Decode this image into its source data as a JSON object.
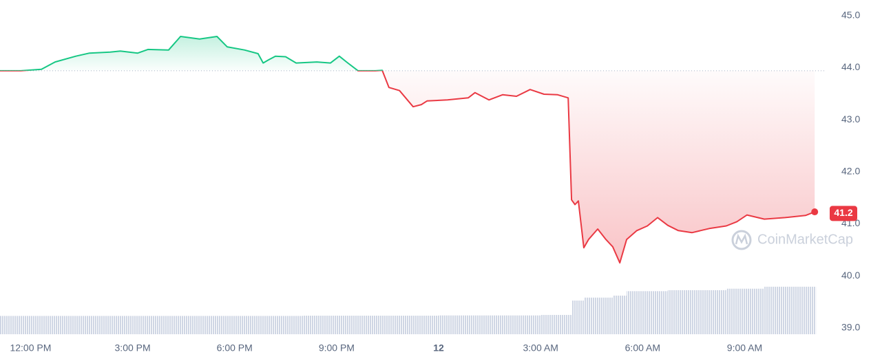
{
  "chart_data": {
    "type": "line",
    "series": [
      {
        "name": "Price",
        "color_up": "#16c784",
        "color_down": "#ea3943",
        "x": [
          -0.9,
          -0.29,
          0.32,
          0.72,
          1.33,
          1.73,
          2.34,
          2.64,
          3.15,
          3.45,
          4.06,
          4.41,
          4.97,
          5.48,
          5.78,
          6.29,
          6.69,
          6.84,
          7.0,
          7.2,
          7.5,
          7.81,
          8.42,
          8.82,
          9.08,
          9.33,
          9.63,
          10.14,
          10.34,
          10.54,
          10.85,
          11.25,
          11.49,
          11.66,
          12.26,
          12.87,
          13.07,
          13.48,
          13.88,
          14.29,
          14.69,
          15.1,
          15.5,
          15.81,
          15.91,
          16.01,
          16.11,
          16.27,
          16.41,
          16.68,
          16.92,
          17.12,
          17.33,
          17.53,
          17.83,
          18.14,
          18.44,
          18.74,
          19.05,
          19.45,
          19.96,
          20.46,
          20.77,
          21.07,
          21.58,
          22.19,
          22.79,
          23.06
        ],
        "values": [
          43.94,
          43.94,
          43.97,
          44.11,
          44.22,
          44.28,
          44.3,
          44.32,
          44.28,
          44.35,
          44.34,
          44.6,
          44.55,
          44.6,
          44.4,
          44.34,
          44.27,
          44.09,
          44.15,
          44.22,
          44.21,
          44.09,
          44.11,
          44.09,
          44.22,
          44.09,
          43.94,
          43.94,
          43.95,
          43.62,
          43.56,
          43.25,
          43.29,
          43.36,
          43.38,
          43.42,
          43.52,
          43.38,
          43.48,
          43.45,
          43.58,
          43.49,
          43.48,
          43.42,
          41.46,
          41.37,
          41.44,
          40.54,
          40.7,
          40.9,
          40.7,
          40.56,
          40.25,
          40.7,
          40.87,
          40.96,
          41.12,
          40.97,
          40.87,
          40.83,
          40.91,
          40.96,
          41.04,
          41.17,
          41.09,
          41.12,
          41.16,
          41.23
        ]
      }
    ],
    "baseline": 43.94,
    "current_price": 41.2,
    "volume": {
      "color": "#cfd6e4",
      "x": [
        -0.9,
        3.0,
        8.0,
        12.0,
        15.0,
        15.91,
        16.27,
        17.12,
        17.53,
        18.74,
        20.46,
        21.58
      ],
      "values": [
        0.37,
        0.37,
        0.375,
        0.38,
        0.39,
        0.68,
        0.74,
        0.78,
        0.87,
        0.89,
        0.92,
        0.96
      ]
    },
    "xlim": [
      -0.9,
      23.4
    ],
    "xticks": [
      {
        "value": 0,
        "label": "12:00 PM"
      },
      {
        "value": 3,
        "label": "3:00 PM"
      },
      {
        "value": 6,
        "label": "6:00 PM"
      },
      {
        "value": 9,
        "label": "9:00 PM"
      },
      {
        "value": 12,
        "label": "12"
      },
      {
        "value": 15,
        "label": "3:00 AM"
      },
      {
        "value": 18,
        "label": "6:00 AM"
      },
      {
        "value": 21,
        "label": "9:00 AM"
      }
    ],
    "ylim": [
      38.76,
      45.3
    ],
    "yticks": [
      {
        "value": 39,
        "label": "39.0"
      },
      {
        "value": 40,
        "label": "40.0"
      },
      {
        "value": 41,
        "label": "41.0"
      },
      {
        "value": 42,
        "label": "42.0"
      },
      {
        "value": 43,
        "label": "43.0"
      },
      {
        "value": 44,
        "label": "44.0"
      },
      {
        "value": 45,
        "label": "45.0"
      }
    ],
    "grid": true,
    "watermark": "CoinMarketCap"
  }
}
